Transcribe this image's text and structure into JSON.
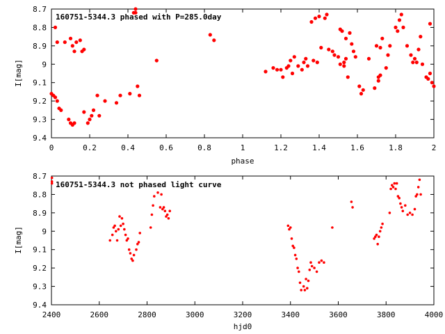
{
  "chart_data": [
    {
      "type": "scatter",
      "title": "160751-5344.3 phased with P=285.0day",
      "xlabel": "phase",
      "ylabel": "I[mag]",
      "xlim": [
        0,
        2
      ],
      "ylim": [
        8.7,
        9.4
      ],
      "y_inverted": true,
      "xticks": [
        "0",
        "0.2",
        "0.4",
        "0.6",
        "0.8",
        "1",
        "1.2",
        "1.4",
        "1.6",
        "1.8",
        "2"
      ],
      "yticks": [
        "8.7",
        "8.8",
        "8.9",
        "9",
        "9.1",
        "9.2",
        "9.3",
        "9.4"
      ],
      "marker_color": "#ff0000",
      "series": [
        {
          "points": [
            [
              0.0,
              9.16
            ],
            [
              0.01,
              9.17
            ],
            [
              0.02,
              9.18
            ],
            [
              0.03,
              9.2
            ],
            [
              0.02,
              8.8
            ],
            [
              0.03,
              8.88
            ],
            [
              0.04,
              9.24
            ],
            [
              0.05,
              9.25
            ],
            [
              0.07,
              8.88
            ],
            [
              0.09,
              9.3
            ],
            [
              0.1,
              9.32
            ],
            [
              0.11,
              9.33
            ],
            [
              0.12,
              9.32
            ],
            [
              0.1,
              8.86
            ],
            [
              0.11,
              8.9
            ],
            [
              0.12,
              8.93
            ],
            [
              0.13,
              8.88
            ],
            [
              0.15,
              8.87
            ],
            [
              0.16,
              8.93
            ],
            [
              0.17,
              8.92
            ],
            [
              0.17,
              9.26
            ],
            [
              0.19,
              9.32
            ],
            [
              0.2,
              9.3
            ],
            [
              0.21,
              9.28
            ],
            [
              0.22,
              9.25
            ],
            [
              0.24,
              9.17
            ],
            [
              0.25,
              9.28
            ],
            [
              0.28,
              9.2
            ],
            [
              0.34,
              9.21
            ],
            [
              0.36,
              9.17
            ],
            [
              0.41,
              9.16
            ],
            [
              0.43,
              8.72
            ],
            [
              0.44,
              8.72
            ],
            [
              0.44,
              8.7
            ],
            [
              0.45,
              9.12
            ],
            [
              0.46,
              9.17
            ],
            [
              0.55,
              8.98
            ],
            [
              0.83,
              8.84
            ],
            [
              0.85,
              8.87
            ],
            [
              1.12,
              9.04
            ],
            [
              1.16,
              9.02
            ],
            [
              1.18,
              9.03
            ],
            [
              1.2,
              9.03
            ],
            [
              1.21,
              9.07
            ],
            [
              1.23,
              9.02
            ],
            [
              1.24,
              9.01
            ],
            [
              1.25,
              8.98
            ],
            [
              1.26,
              9.05
            ],
            [
              1.27,
              8.96
            ],
            [
              1.29,
              9.01
            ],
            [
              1.31,
              9.03
            ],
            [
              1.32,
              8.99
            ],
            [
              1.33,
              8.97
            ],
            [
              1.34,
              9.01
            ],
            [
              1.36,
              8.77
            ],
            [
              1.37,
              8.98
            ],
            [
              1.38,
              8.75
            ],
            [
              1.39,
              8.99
            ],
            [
              1.4,
              8.74
            ],
            [
              1.41,
              8.91
            ],
            [
              1.43,
              8.75
            ],
            [
              1.44,
              8.73
            ],
            [
              1.45,
              8.92
            ],
            [
              1.47,
              8.93
            ],
            [
              1.48,
              8.95
            ],
            [
              1.5,
              8.96
            ],
            [
              1.51,
              8.81
            ],
            [
              1.51,
              9.0
            ],
            [
              1.52,
              8.82
            ],
            [
              1.53,
              8.99
            ],
            [
              1.53,
              9.01
            ],
            [
              1.54,
              8.97
            ],
            [
              1.54,
              8.86
            ],
            [
              1.55,
              9.07
            ],
            [
              1.56,
              8.83
            ],
            [
              1.57,
              8.89
            ],
            [
              1.58,
              8.93
            ],
            [
              1.59,
              8.96
            ],
            [
              1.61,
              9.12
            ],
            [
              1.62,
              9.16
            ],
            [
              1.63,
              9.14
            ],
            [
              1.66,
              8.97
            ],
            [
              1.69,
              9.13
            ],
            [
              1.7,
              8.9
            ],
            [
              1.71,
              9.07
            ],
            [
              1.71,
              9.09
            ],
            [
              1.72,
              8.91
            ],
            [
              1.72,
              9.06
            ],
            [
              1.73,
              8.86
            ],
            [
              1.75,
              9.02
            ],
            [
              1.76,
              8.95
            ],
            [
              1.77,
              8.9
            ],
            [
              1.8,
              8.8
            ],
            [
              1.81,
              8.82
            ],
            [
              1.82,
              8.76
            ],
            [
              1.83,
              8.73
            ],
            [
              1.84,
              8.8
            ],
            [
              1.86,
              8.9
            ],
            [
              1.88,
              8.95
            ],
            [
              1.89,
              8.99
            ],
            [
              1.9,
              8.97
            ],
            [
              1.91,
              8.99
            ],
            [
              1.92,
              8.92
            ],
            [
              1.93,
              8.85
            ],
            [
              1.94,
              9.0
            ],
            [
              1.96,
              9.07
            ],
            [
              1.97,
              9.08
            ],
            [
              1.98,
              8.78
            ],
            [
              1.98,
              9.05
            ],
            [
              1.99,
              9.1
            ],
            [
              2.0,
              9.12
            ]
          ]
        }
      ]
    },
    {
      "type": "scatter",
      "title": "160751-5344.3 not phased light curve",
      "xlabel": "hjd0",
      "ylabel": "I[mag]",
      "xlim": [
        2400,
        4000
      ],
      "ylim": [
        8.7,
        9.4
      ],
      "y_inverted": true,
      "xticks": [
        "2400",
        "2600",
        "2800",
        "3000",
        "3200",
        "3400",
        "3600",
        "3800",
        "4000"
      ],
      "yticks": [
        "8.7",
        "8.8",
        "8.9",
        "9",
        "9.1",
        "9.2",
        "9.3",
        "9.4"
      ],
      "marker_color": "#ff0000",
      "series": [
        {
          "points": [
            [
              2402,
              8.71
            ],
            [
              2402,
              8.73
            ],
            [
              2402,
              8.74
            ],
            [
              2645,
              9.05
            ],
            [
              2655,
              9.02
            ],
            [
              2660,
              8.98
            ],
            [
              2665,
              8.97
            ],
            [
              2670,
              9.0
            ],
            [
              2675,
              9.05
            ],
            [
              2680,
              8.99
            ],
            [
              2685,
              8.92
            ],
            [
              2690,
              8.97
            ],
            [
              2695,
              8.93
            ],
            [
              2700,
              8.96
            ],
            [
              2705,
              8.99
            ],
            [
              2710,
              9.02
            ],
            [
              2715,
              9.05
            ],
            [
              2720,
              9.04
            ],
            [
              2725,
              9.1
            ],
            [
              2730,
              9.12
            ],
            [
              2735,
              9.15
            ],
            [
              2740,
              9.16
            ],
            [
              2745,
              9.13
            ],
            [
              2755,
              9.1
            ],
            [
              2760,
              9.07
            ],
            [
              2765,
              9.06
            ],
            [
              2770,
              9.01
            ],
            [
              2815,
              8.98
            ],
            [
              2820,
              8.91
            ],
            [
              2825,
              8.86
            ],
            [
              2830,
              8.81
            ],
            [
              2845,
              8.79
            ],
            [
              2855,
              8.87
            ],
            [
              2860,
              8.8
            ],
            [
              2865,
              8.88
            ],
            [
              2870,
              8.87
            ],
            [
              2875,
              8.89
            ],
            [
              2880,
              8.92
            ],
            [
              2885,
              8.91
            ],
            [
              2890,
              8.93
            ],
            [
              2895,
              8.89
            ],
            [
              3390,
              8.97
            ],
            [
              3395,
              8.99
            ],
            [
              3400,
              8.98
            ],
            [
              3405,
              9.04
            ],
            [
              3410,
              9.08
            ],
            [
              3415,
              9.09
            ],
            [
              3420,
              9.13
            ],
            [
              3425,
              9.15
            ],
            [
              3430,
              9.2
            ],
            [
              3435,
              9.22
            ],
            [
              3440,
              9.28
            ],
            [
              3445,
              9.32
            ],
            [
              3455,
              9.3
            ],
            [
              3460,
              9.32
            ],
            [
              3465,
              9.26
            ],
            [
              3470,
              9.31
            ],
            [
              3475,
              9.27
            ],
            [
              3480,
              9.21
            ],
            [
              3485,
              9.17
            ],
            [
              3490,
              9.19
            ],
            [
              3500,
              9.2
            ],
            [
              3510,
              9.22
            ],
            [
              3520,
              9.17
            ],
            [
              3530,
              9.16
            ],
            [
              3540,
              9.17
            ],
            [
              3575,
              8.98
            ],
            [
              3655,
              8.84
            ],
            [
              3660,
              8.87
            ],
            [
              3750,
              9.04
            ],
            [
              3755,
              9.03
            ],
            [
              3760,
              9.02
            ],
            [
              3765,
              9.07
            ],
            [
              3770,
              9.03
            ],
            [
              3775,
              9.0
            ],
            [
              3780,
              8.98
            ],
            [
              3785,
              8.96
            ],
            [
              3815,
              8.9
            ],
            [
              3820,
              8.77
            ],
            [
              3825,
              8.75
            ],
            [
              3830,
              8.76
            ],
            [
              3835,
              8.74
            ],
            [
              3840,
              8.77
            ],
            [
              3845,
              8.74
            ],
            [
              3850,
              8.81
            ],
            [
              3855,
              8.82
            ],
            [
              3860,
              8.85
            ],
            [
              3865,
              8.87
            ],
            [
              3870,
              8.89
            ],
            [
              3880,
              8.86
            ],
            [
              3890,
              8.91
            ],
            [
              3900,
              8.9
            ],
            [
              3910,
              8.91
            ],
            [
              3920,
              8.88
            ],
            [
              3925,
              8.81
            ],
            [
              3930,
              8.8
            ],
            [
              3935,
              8.76
            ],
            [
              3940,
              8.72
            ],
            [
              3945,
              8.8
            ]
          ]
        }
      ]
    }
  ]
}
